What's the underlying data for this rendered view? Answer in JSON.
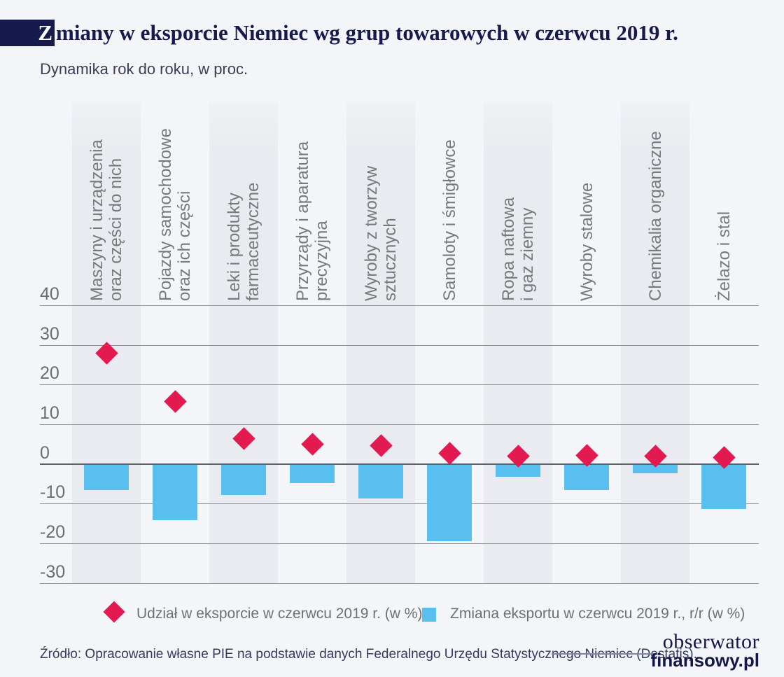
{
  "page": {
    "background": "#f4f5f8",
    "accent_navy": "#171a4d"
  },
  "header": {
    "title_first_letter": "Z",
    "title_rest": "miany w eksporcie Niemiec wg grup towarowych w czerwcu 2019 r.",
    "subtitle": "Dynamika rok do roku, w proc."
  },
  "chart_data": {
    "type": "combo",
    "orientation": "vertical-category-labels",
    "categories": [
      [
        "Maszyny i urządzenia",
        "oraz części do nich"
      ],
      [
        "Pojazdy samochodowe",
        "oraz ich części"
      ],
      [
        "Leki i produkty",
        "farmaceutyczne"
      ],
      [
        "Przyrządy i aparatura",
        "precyzyjna"
      ],
      [
        "Wyroby z tworzyw",
        "sztucznych"
      ],
      [
        "Samoloty i śmigłowce"
      ],
      [
        "Ropa naftowa",
        "i gaz ziemny"
      ],
      [
        "Wyroby stalowe"
      ],
      [
        "Chemikalia organiczne"
      ],
      [
        "Żelazo i stal"
      ]
    ],
    "series": [
      {
        "name": "Udział w eksporcie w czerwcu 2019 r. (w %)",
        "type": "scatter",
        "marker": "diamond",
        "color": "#e31a4f",
        "values": [
          28,
          15.7,
          6.3,
          5,
          4.7,
          2.6,
          2,
          2.1,
          1.9,
          1.7
        ]
      },
      {
        "name": "Zmiana eksportu w czerwcu 2019 r., r/r (w %)",
        "type": "bar",
        "color": "#58bfee",
        "values": [
          -6.5,
          -14.2,
          -7.9,
          -4.8,
          -8.7,
          -19.4,
          -3.3,
          -6.6,
          -2.4,
          -11.3
        ]
      }
    ],
    "yticks": [
      40,
      30,
      20,
      10,
      0,
      -10,
      -20,
      -30
    ],
    "ylim": [
      -30,
      40
    ],
    "grid": true,
    "column_stripes_on": [
      1,
      3,
      5,
      7,
      9
    ],
    "legend_position": "bottom"
  },
  "footer": {
    "source": "Źródło: Opracowanie własne PIE na podstawie danych Federalnego Urzędu Statystycznego Niemiec (Destatis).",
    "logo_line1": "obserwator",
    "logo_line2": "finansowy.pl"
  }
}
